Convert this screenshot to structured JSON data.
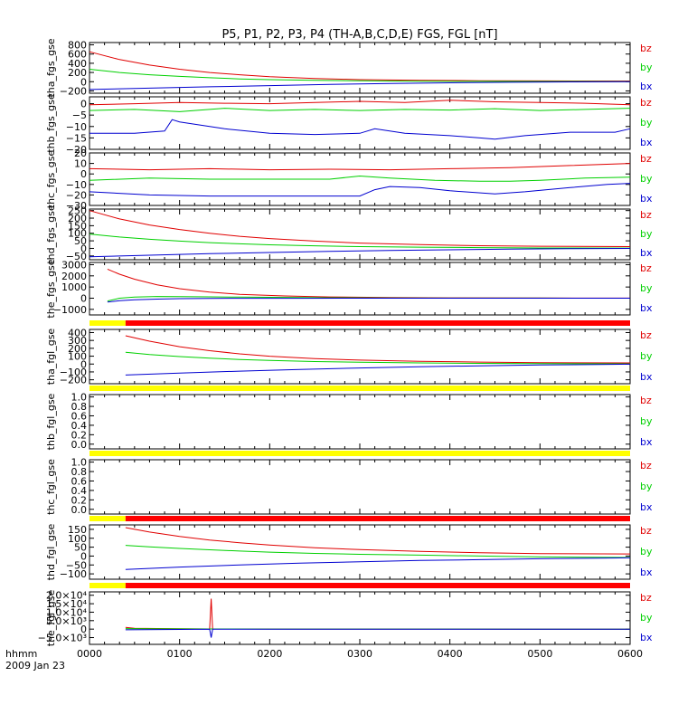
{
  "page": {
    "title": "P5, P1, P2, P3, P4 (TH-A,B,C,D,E) FGS, FGL [nT]",
    "time_label": "hhmm",
    "date_label": "2009 Jan 23"
  },
  "colors": {
    "bz": "#e00000",
    "by": "#00d000",
    "bx": "#0000d0",
    "quality_good": "#ff0000",
    "quality_none": "#ffff00",
    "axes": "#000000"
  },
  "chart_data": {
    "type": "line",
    "x_tick_labels": [
      "0000",
      "0100",
      "0200",
      "0300",
      "0400",
      "0500",
      "0600"
    ],
    "x_tick_values": [
      0,
      60,
      120,
      180,
      240,
      300,
      360
    ],
    "xlim": [
      0,
      360
    ],
    "legend": [
      "bz",
      "by",
      "bx"
    ],
    "panels": [
      {
        "ylabel": "tha_fgs_gse",
        "ylim": [
          -250,
          850
        ],
        "ticks": [
          -200,
          0,
          200,
          400,
          600,
          800
        ],
        "tick_labels": [
          "−200",
          "0",
          "200",
          "400",
          "600",
          "800"
        ],
        "series": [
          {
            "name": "bz",
            "x": [
              0,
              20,
              40,
              60,
              80,
              100,
              120,
              150,
              180,
              220,
              260,
              300,
              360
            ],
            "y": [
              650,
              480,
              360,
              270,
              200,
              150,
              110,
              70,
              45,
              30,
              22,
              18,
              15
            ]
          },
          {
            "name": "by",
            "x": [
              0,
              20,
              40,
              60,
              80,
              100,
              120,
              150,
              180,
              220,
              260,
              300,
              360
            ],
            "y": [
              270,
              200,
              150,
              115,
              85,
              60,
              45,
              30,
              20,
              12,
              8,
              5,
              3
            ]
          },
          {
            "name": "bx",
            "x": [
              0,
              40,
              80,
              120,
              160,
              200,
              240,
              280,
              320,
              360
            ],
            "y": [
              -170,
              -140,
              -110,
              -85,
              -60,
              -40,
              -25,
              -12,
              -5,
              0
            ]
          }
        ]
      },
      {
        "ylabel": "thb_fgs_gse",
        "ylim": [
          -20,
          3
        ],
        "ticks": [
          -20,
          -15,
          -10,
          -5,
          0
        ],
        "tick_labels": [
          "−20",
          "−15",
          "−10",
          "−5",
          "0"
        ],
        "series": [
          {
            "name": "bz",
            "x": [
              0,
              30,
              60,
              90,
              120,
              150,
              180,
              210,
              240,
              270,
              300,
              330,
              360
            ],
            "y": [
              -0.5,
              0,
              0.5,
              0.2,
              0,
              0.5,
              1,
              0.5,
              1.5,
              0.8,
              0.5,
              0.2,
              -0.5
            ]
          },
          {
            "name": "by",
            "x": [
              0,
              30,
              60,
              90,
              120,
              150,
              180,
              210,
              240,
              270,
              300,
              330,
              360
            ],
            "y": [
              -3,
              -2.5,
              -3.5,
              -2,
              -3,
              -2.5,
              -3,
              -2.5,
              -2.8,
              -2.2,
              -3,
              -2.5,
              -2
            ]
          },
          {
            "name": "bx",
            "x": [
              0,
              30,
              50,
              55,
              60,
              90,
              120,
              150,
              180,
              190,
              210,
              240,
              260,
              270,
              290,
              320,
              350,
              360
            ],
            "y": [
              -13,
              -13,
              -12,
              -7,
              -8,
              -11,
              -13,
              -13.5,
              -13,
              -11,
              -13,
              -14,
              -15,
              -15.5,
              -14,
              -12.5,
              -12.5,
              -11
            ]
          }
        ]
      },
      {
        "ylabel": "thc_fgs_gse",
        "ylim": [
          -30,
          20
        ],
        "ticks": [
          -30,
          -20,
          -10,
          0,
          10,
          20
        ],
        "tick_labels": [
          "−30",
          "−20",
          "−10",
          "0",
          "10",
          "20"
        ],
        "series": [
          {
            "name": "bz",
            "x": [
              0,
              40,
              80,
              120,
              160,
              200,
              240,
              280,
              320,
              360
            ],
            "y": [
              5,
              4,
              5,
              4,
              4.5,
              4,
              5,
              6,
              8,
              10
            ]
          },
          {
            "name": "by",
            "x": [
              0,
              40,
              80,
              120,
              160,
              180,
              200,
              230,
              260,
              280,
              300,
              330,
              360
            ],
            "y": [
              -6,
              -4,
              -5,
              -5,
              -5,
              -2,
              -4,
              -6,
              -7,
              -7,
              -6,
              -4,
              -3
            ]
          },
          {
            "name": "bx",
            "x": [
              0,
              40,
              80,
              120,
              160,
              180,
              190,
              200,
              220,
              240,
              270,
              290,
              320,
              345,
              360
            ],
            "y": [
              -17,
              -20,
              -21,
              -21,
              -21,
              -21,
              -15,
              -12,
              -13,
              -16,
              -19,
              -17,
              -13,
              -10,
              -9
            ]
          }
        ]
      },
      {
        "ylabel": "thd_fgs_gse",
        "ylim": [
          -75,
          260
        ],
        "ticks": [
          -50,
          0,
          50,
          100,
          150,
          200,
          250
        ],
        "tick_labels": [
          "−50",
          "0",
          "50",
          "100",
          "150",
          "200",
          "250"
        ],
        "series": [
          {
            "name": "bz",
            "x": [
              0,
              20,
              40,
              60,
              80,
              100,
              120,
              150,
              180,
              220,
              260,
              300,
              360
            ],
            "y": [
              250,
              195,
              155,
              125,
              100,
              80,
              65,
              48,
              35,
              25,
              18,
              14,
              12
            ]
          },
          {
            "name": "by",
            "x": [
              0,
              20,
              40,
              60,
              80,
              100,
              120,
              150,
              180,
              220,
              260,
              300,
              360
            ],
            "y": [
              95,
              75,
              60,
              48,
              38,
              30,
              24,
              17,
              12,
              8,
              5,
              3,
              2
            ]
          },
          {
            "name": "bx",
            "x": [
              0,
              40,
              80,
              120,
              160,
              200,
              240,
              280,
              320,
              360
            ],
            "y": [
              -55,
              -45,
              -35,
              -27,
              -20,
              -14,
              -9,
              -5,
              -2,
              0
            ]
          }
        ]
      },
      {
        "ylabel": "the_fgs_gse",
        "ylim": [
          -1500,
          3200
        ],
        "ticks": [
          -1000,
          0,
          1000,
          2000,
          3000
        ],
        "tick_labels": [
          "−1000",
          "0",
          "1000",
          "2000",
          "3000"
        ],
        "series": [
          {
            "name": "bz",
            "x": [
              12,
              20,
              30,
              45,
              60,
              80,
              100,
              130,
              160,
              200,
              240,
              300,
              360
            ],
            "y": [
              2600,
              2150,
              1700,
              1200,
              850,
              550,
              350,
              200,
              110,
              60,
              30,
              15,
              10
            ]
          },
          {
            "name": "by",
            "x": [
              12,
              20,
              30,
              45,
              60,
              80,
              100,
              130,
              160,
              200,
              240,
              300,
              360
            ],
            "y": [
              -250,
              0,
              100,
              150,
              140,
              120,
              100,
              70,
              40,
              20,
              10,
              5,
              2
            ]
          },
          {
            "name": "bx",
            "x": [
              12,
              20,
              30,
              45,
              60,
              80,
              100,
              140,
              180,
              240,
              300,
              360
            ],
            "y": [
              -350,
              -220,
              -140,
              -80,
              -40,
              -20,
              -10,
              -5,
              -2,
              0,
              0,
              0
            ]
          }
        ]
      },
      {
        "ylabel": "tha_fgl_gse",
        "ylim": [
          -250,
          440
        ],
        "ticks": [
          -200,
          -100,
          0,
          100,
          200,
          300,
          400
        ],
        "tick_labels": [
          "−200",
          "−100",
          "0",
          "100",
          "200",
          "300",
          "400"
        ],
        "series": [
          {
            "name": "bz",
            "x": [
              24,
              40,
              60,
              80,
              100,
              120,
              150,
              180,
              220,
              260,
              300,
              360
            ],
            "y": [
              360,
              290,
              220,
              170,
              130,
              100,
              70,
              50,
              35,
              25,
              18,
              15
            ]
          },
          {
            "name": "by",
            "x": [
              24,
              40,
              60,
              80,
              100,
              120,
              150,
              180,
              220,
              260,
              300,
              360
            ],
            "y": [
              150,
              120,
              95,
              75,
              58,
              45,
              32,
              22,
              14,
              9,
              5,
              3
            ]
          },
          {
            "name": "bx",
            "x": [
              24,
              60,
              100,
              140,
              180,
              220,
              260,
              300,
              340,
              360
            ],
            "y": [
              -140,
              -115,
              -90,
              -68,
              -50,
              -35,
              -22,
              -12,
              -5,
              -2
            ]
          }
        ]
      },
      {
        "ylabel": "thb_fgl_gse",
        "ylim": [
          -0.1,
          1.05
        ],
        "ticks": [
          0,
          0.2,
          0.4,
          0.6,
          0.8,
          1
        ],
        "tick_labels": [
          "0.0",
          "0.2",
          "0.4",
          "0.6",
          "0.8",
          "1.0"
        ],
        "series": []
      },
      {
        "ylabel": "thc_fgl_gse",
        "ylim": [
          -0.1,
          1.05
        ],
        "ticks": [
          0,
          0.2,
          0.4,
          0.6,
          0.8,
          1
        ],
        "tick_labels": [
          "0.0",
          "0.2",
          "0.4",
          "0.6",
          "0.8",
          "1.0"
        ],
        "series": []
      },
      {
        "ylabel": "thd_fgl_gse",
        "ylim": [
          -130,
          175
        ],
        "ticks": [
          -100,
          -50,
          0,
          50,
          100,
          150
        ],
        "tick_labels": [
          "−100",
          "−50",
          "0",
          "50",
          "100",
          "150"
        ],
        "series": [
          {
            "name": "bz",
            "x": [
              24,
              40,
              60,
              80,
              100,
              120,
              150,
              180,
              220,
              260,
              300,
              360
            ],
            "y": [
              160,
              135,
              110,
              90,
              75,
              62,
              47,
              36,
              26,
              19,
              14,
              12
            ]
          },
          {
            "name": "by",
            "x": [
              24,
              40,
              60,
              80,
              100,
              120,
              150,
              180,
              220,
              260,
              300,
              360
            ],
            "y": [
              60,
              52,
              43,
              35,
              28,
              22,
              15,
              10,
              5,
              0,
              -5,
              -8
            ]
          },
          {
            "name": "bx",
            "x": [
              24,
              60,
              100,
              140,
              180,
              220,
              260,
              300,
              340,
              360
            ],
            "y": [
              -75,
              -62,
              -50,
              -40,
              -32,
              -25,
              -20,
              -15,
              -12,
              -10
            ]
          }
        ]
      },
      {
        "ylabel": "the_fgl_gse",
        "ylim": [
          -9000,
          22000
        ],
        "ticks": [
          -5000,
          0,
          5000,
          10000,
          15000,
          20000
        ],
        "tick_labels": [
          "−5.0×10³",
          "0",
          "5.0×10³",
          "1.0×10⁴",
          "1.5×10⁴",
          "2.0×10⁴"
        ],
        "series": [
          {
            "name": "bz",
            "x": [
              24,
              30,
              60,
              80,
              81,
              82,
              100,
              150,
              200,
              300,
              360
            ],
            "y": [
              1000,
              500,
              200,
              100,
              18000,
              100,
              60,
              30,
              15,
              5,
              0
            ]
          },
          {
            "name": "by",
            "x": [
              24,
              40,
              60,
              80,
              120,
              200,
              300,
              360
            ],
            "y": [
              300,
              200,
              150,
              100,
              50,
              20,
              5,
              0
            ]
          },
          {
            "name": "bx",
            "x": [
              24,
              60,
              80,
              81,
              82,
              120,
              200,
              300,
              360
            ],
            "y": [
              -400,
              -200,
              -100,
              -5000,
              -100,
              -50,
              -20,
              -5,
              0
            ]
          }
        ]
      }
    ]
  }
}
